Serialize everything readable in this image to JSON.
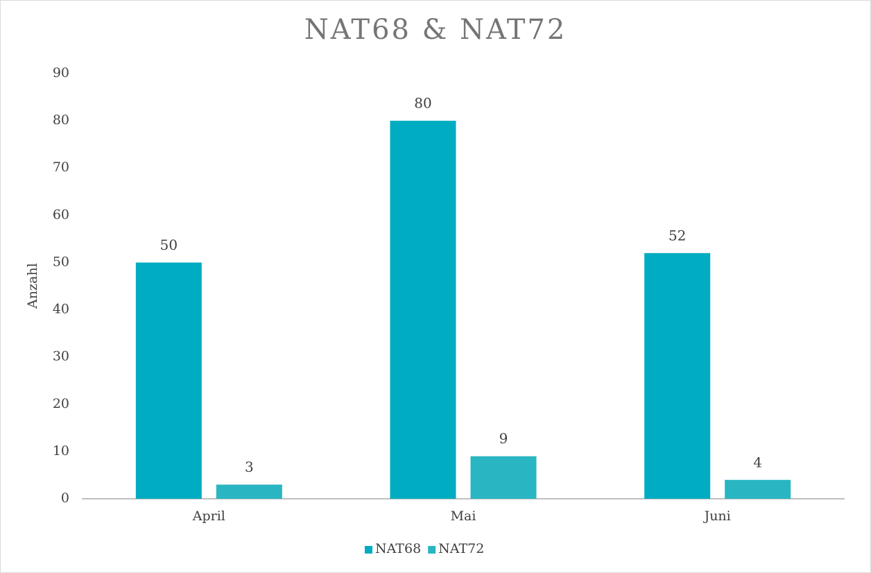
{
  "chart_data": {
    "type": "bar",
    "title": "NAT68 & NAT72",
    "y_label": "Anzahl",
    "categories": [
      "April",
      "Mai",
      "Juni"
    ],
    "series": [
      {
        "name": "NAT68",
        "color": "#00acc1",
        "values": [
          50,
          80,
          52
        ]
      },
      {
        "name": "NAT72",
        "color": "#29b6c2",
        "values": [
          3,
          9,
          4
        ]
      }
    ],
    "ylim": [
      0,
      90
    ],
    "yticks": [
      0,
      10,
      20,
      30,
      40,
      50,
      60,
      70,
      80,
      90
    ],
    "grid": false,
    "legend": "bottom"
  }
}
